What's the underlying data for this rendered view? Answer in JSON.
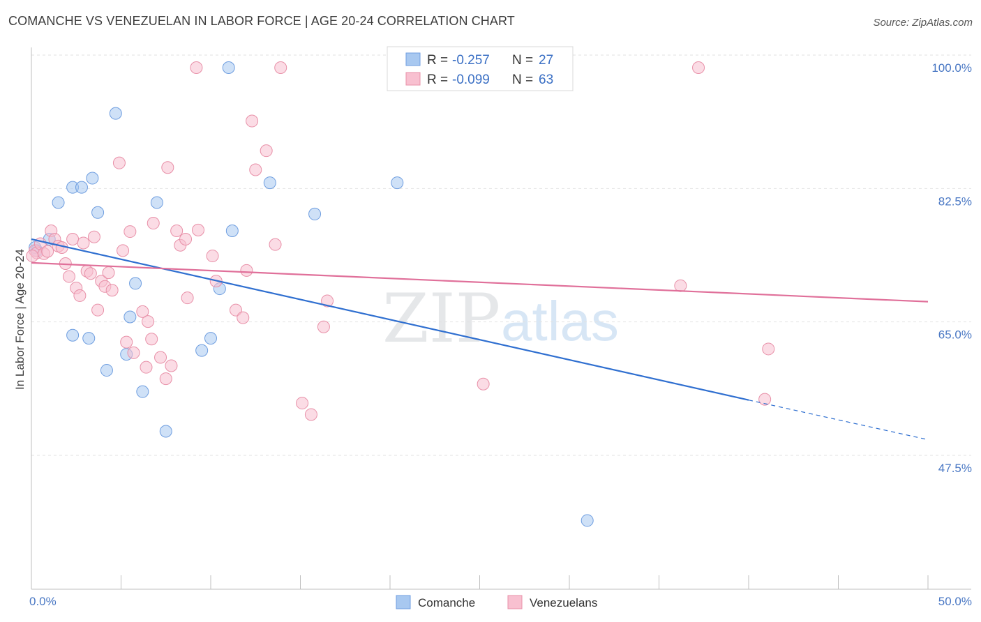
{
  "title": "COMANCHE VS VENEZUELAN IN LABOR FORCE | AGE 20-24 CORRELATION CHART",
  "source": "Source: ZipAtlas.com",
  "watermark": {
    "zip": "ZIP",
    "atlas": "atlas"
  },
  "stats": [
    {
      "r_label": "R =",
      "r_value": "-0.257",
      "n_label": "N =",
      "n_value": "27",
      "color": "#a8c8f0",
      "stroke": "#6f9ee0"
    },
    {
      "r_label": "R =",
      "r_value": "-0.099",
      "n_label": "N =",
      "n_value": "63",
      "color": "#f8c0d0",
      "stroke": "#e890a8"
    }
  ],
  "legend": [
    {
      "label": "Comanche",
      "color": "#a8c8f0",
      "stroke": "#6f9ee0"
    },
    {
      "label": "Venezuelans",
      "color": "#f8c0d0",
      "stroke": "#e890a8"
    }
  ],
  "chart_data": {
    "type": "scatter",
    "title": "COMANCHE VS VENEZUELAN IN LABOR FORCE | AGE 20-24 CORRELATION CHART",
    "xlabel": "",
    "ylabel": "In Labor Force | Age 20-24",
    "xlim": [
      0,
      50
    ],
    "ylim": [
      32.5,
      102
    ],
    "x_ticks_labels": [
      "0.0%",
      "50.0%"
    ],
    "y_ticks": [
      47.5,
      65.0,
      82.5,
      100.0
    ],
    "y_ticks_labels": [
      "47.5%",
      "65.0%",
      "82.5%",
      "100.0%"
    ],
    "grid": true,
    "series": [
      {
        "name": "Comanche",
        "color": "#a8c8f0",
        "stroke": "#6f9ee0",
        "trend_color": "#2f6fd0",
        "trend": {
          "x0": 0,
          "y0": 77.5,
          "x1": 40,
          "y1": 56.4,
          "dash_to_x": 50,
          "dash_to_y": 51.2
        },
        "points": [
          [
            0.3,
            76.0
          ],
          [
            1.0,
            77.5
          ],
          [
            1.5,
            82.3
          ],
          [
            2.3,
            64.9
          ],
          [
            2.3,
            84.3
          ],
          [
            2.8,
            84.3
          ],
          [
            3.2,
            64.5
          ],
          [
            3.4,
            85.5
          ],
          [
            3.7,
            81.0
          ],
          [
            4.2,
            60.3
          ],
          [
            4.7,
            94.0
          ],
          [
            5.3,
            62.4
          ],
          [
            5.5,
            67.3
          ],
          [
            5.8,
            71.7
          ],
          [
            6.2,
            57.5
          ],
          [
            7.0,
            82.3
          ],
          [
            7.5,
            52.3
          ],
          [
            9.5,
            62.9
          ],
          [
            10.0,
            64.5
          ],
          [
            10.5,
            71.0
          ],
          [
            11.0,
            100.0
          ],
          [
            11.2,
            78.6
          ],
          [
            13.3,
            84.9
          ],
          [
            15.8,
            80.8
          ],
          [
            20.4,
            84.9
          ],
          [
            31.0,
            40.6
          ],
          [
            0.2,
            76.4
          ]
        ]
      },
      {
        "name": "Venezuelans",
        "color": "#f8c0d0",
        "stroke": "#e890a8",
        "trend_color": "#e0709a",
        "trend": {
          "x0": 0,
          "y0": 74.4,
          "x1": 50,
          "y1": 69.3
        },
        "points": [
          [
            0.2,
            76.0
          ],
          [
            0.3,
            75.7
          ],
          [
            0.5,
            76.9
          ],
          [
            0.7,
            75.6
          ],
          [
            0.9,
            75.9
          ],
          [
            1.1,
            78.6
          ],
          [
            1.3,
            77.5
          ],
          [
            1.5,
            76.6
          ],
          [
            1.7,
            76.4
          ],
          [
            1.9,
            74.3
          ],
          [
            2.1,
            72.6
          ],
          [
            2.3,
            77.5
          ],
          [
            2.5,
            71.1
          ],
          [
            2.7,
            70.1
          ],
          [
            2.9,
            77.0
          ],
          [
            3.1,
            73.3
          ],
          [
            3.3,
            73.0
          ],
          [
            3.5,
            77.8
          ],
          [
            3.7,
            68.2
          ],
          [
            3.9,
            72.0
          ],
          [
            4.1,
            71.3
          ],
          [
            4.3,
            73.1
          ],
          [
            4.5,
            70.8
          ],
          [
            4.9,
            87.5
          ],
          [
            5.1,
            76.0
          ],
          [
            5.3,
            64.0
          ],
          [
            5.5,
            78.5
          ],
          [
            5.7,
            62.6
          ],
          [
            6.2,
            68.0
          ],
          [
            6.4,
            60.7
          ],
          [
            6.5,
            66.7
          ],
          [
            6.7,
            64.4
          ],
          [
            6.8,
            79.6
          ],
          [
            7.2,
            62.0
          ],
          [
            7.5,
            59.2
          ],
          [
            7.6,
            86.9
          ],
          [
            7.8,
            60.9
          ],
          [
            8.1,
            78.6
          ],
          [
            8.3,
            76.7
          ],
          [
            8.6,
            77.5
          ],
          [
            8.7,
            69.8
          ],
          [
            9.2,
            100.0
          ],
          [
            9.3,
            78.7
          ],
          [
            10.1,
            75.3
          ],
          [
            10.3,
            72.0
          ],
          [
            11.4,
            68.2
          ],
          [
            11.8,
            67.2
          ],
          [
            12.0,
            73.4
          ],
          [
            12.3,
            93.0
          ],
          [
            12.5,
            86.6
          ],
          [
            13.1,
            89.1
          ],
          [
            13.6,
            76.8
          ],
          [
            13.9,
            100.0
          ],
          [
            15.1,
            56.0
          ],
          [
            15.6,
            54.5
          ],
          [
            16.3,
            66.0
          ],
          [
            16.5,
            69.4
          ],
          [
            25.2,
            58.5
          ],
          [
            36.2,
            71.4
          ],
          [
            37.2,
            100.0
          ],
          [
            40.9,
            56.5
          ],
          [
            41.1,
            63.1
          ],
          [
            0.05,
            75.3
          ]
        ]
      }
    ]
  }
}
